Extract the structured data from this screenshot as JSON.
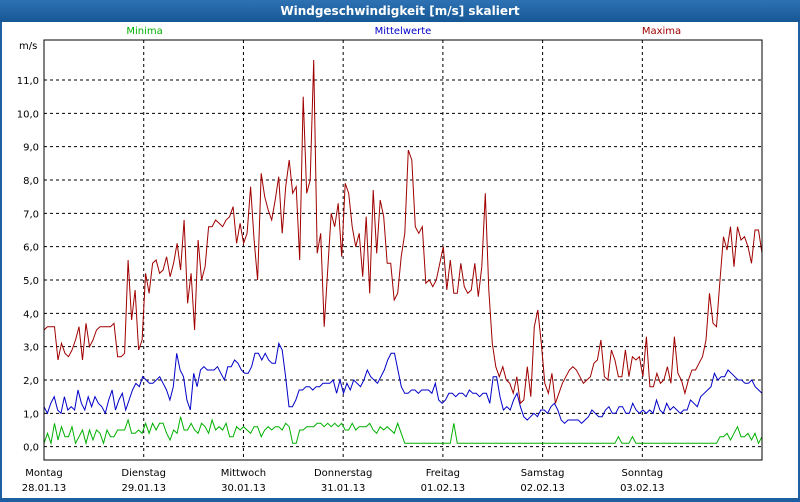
{
  "window": {
    "title": "Windgeschwindigkeit [m/s] skaliert"
  },
  "chart_data": {
    "type": "line",
    "title": "Windgeschwindigkeit [m/s] skaliert",
    "ylabel": "m/s",
    "ylim": [
      -0.4,
      12.2
    ],
    "yticks": [
      0,
      1,
      2,
      3,
      4,
      5,
      6,
      7,
      8,
      9,
      10,
      11
    ],
    "ytick_labels": [
      "0,0",
      "1,0",
      "2,0",
      "3,0",
      "4,0",
      "5,0",
      "6,0",
      "7,0",
      "8,0",
      "9,0",
      "10,0",
      "11,0"
    ],
    "xlim": [
      0,
      7.2
    ],
    "xticks": [
      0,
      1,
      2,
      3,
      4,
      5,
      6
    ],
    "day_labels": [
      "Montag",
      "Dienstag",
      "Mittwoch",
      "Donnerstag",
      "Freitag",
      "Samstag",
      "Sonntag"
    ],
    "date_labels": [
      "28.01.13",
      "29.01.13",
      "30.01.13",
      "31.01.13",
      "01.02.13",
      "02.02.13",
      "03.02.13"
    ],
    "grid": true,
    "legend_placement": "top",
    "series": [
      {
        "name": "Minima",
        "color": "#00b000",
        "values": [
          0.1,
          0.4,
          0.1,
          0.7,
          0.2,
          0.6,
          0.3,
          0.3,
          0.6,
          0.1,
          0.3,
          0.5,
          0.1,
          0.5,
          0.2,
          0.5,
          0.4,
          0.1,
          0.5,
          0.3,
          0.3,
          0.5,
          0.5,
          0.5,
          0.8,
          0.4,
          0.4,
          0.5,
          0.4,
          0.7,
          0.4,
          0.7,
          0.5,
          0.7,
          0.7,
          0.4,
          0.2,
          0.5,
          0.4,
          0.9,
          0.5,
          0.5,
          0.7,
          0.5,
          0.4,
          0.7,
          0.6,
          0.4,
          0.8,
          0.5,
          0.6,
          0.5,
          0.7,
          0.3,
          0.3,
          0.6,
          0.5,
          0.6,
          0.5,
          0.4,
          0.6,
          0.6,
          0.3,
          0.5,
          0.6,
          0.5,
          0.6,
          0.6,
          0.5,
          0.7,
          0.6,
          0.1,
          0.1,
          0.5,
          0.5,
          0.6,
          0.6,
          0.6,
          0.7,
          0.7,
          0.6,
          0.7,
          0.6,
          0.7,
          0.6,
          0.7,
          0.5,
          0.5,
          0.7,
          0.5,
          0.6,
          0.6,
          0.6,
          0.7,
          0.5,
          0.4,
          0.6,
          0.5,
          0.6,
          0.5,
          0.4,
          0.7,
          0.4,
          0.1,
          0.1,
          0.1,
          0.1,
          0.1,
          0.1,
          0.1,
          0.1,
          0.1,
          0.1,
          0.1,
          0.1,
          0.1,
          0.1,
          0.7,
          0.1,
          0.1,
          0.1,
          0.1,
          0.1,
          0.1,
          0.1,
          0.1,
          0.1,
          0.1,
          0.1,
          0.1,
          0.1,
          0.1,
          0.1,
          0.1,
          0.1,
          0.1,
          0.1,
          0.1,
          0.1,
          0.1,
          0.1,
          0.1,
          0.1,
          0.1,
          0.1,
          0.1,
          0.1,
          0.1,
          0.1,
          0.1,
          0.1,
          0.1,
          0.1,
          0.1,
          0.1,
          0.1,
          0.1,
          0.1,
          0.1,
          0.1,
          0.1,
          0.1,
          0.1,
          0.1,
          0.3,
          0.1,
          0.1,
          0.1,
          0.3,
          0.1,
          0.1,
          0.1,
          0.1,
          0.1,
          0.1,
          0.1,
          0.1,
          0.1,
          0.1,
          0.1,
          0.1,
          0.1,
          0.1,
          0.1,
          0.1,
          0.1,
          0.1,
          0.1,
          0.1,
          0.1,
          0.1,
          0.1,
          0.1,
          0.3,
          0.3,
          0.4,
          0.2,
          0.4,
          0.6,
          0.3,
          0.3,
          0.4,
          0.2,
          0.4,
          0.1,
          0.3
        ]
      },
      {
        "name": "Mittelwerte",
        "color": "#0000c8",
        "values": [
          1.2,
          1.0,
          1.3,
          1.5,
          1.1,
          1.0,
          1.5,
          1.1,
          1.2,
          1.1,
          1.7,
          1.3,
          1.1,
          1.5,
          1.2,
          1.5,
          1.3,
          1.2,
          1.0,
          1.4,
          1.7,
          1.1,
          1.4,
          1.6,
          1.1,
          1.4,
          1.7,
          1.9,
          1.8,
          2.1,
          2.0,
          1.9,
          1.9,
          2.0,
          2.1,
          1.9,
          1.7,
          1.4,
          1.8,
          2.8,
          2.3,
          2.1,
          1.4,
          1.1,
          2.2,
          1.8,
          2.3,
          2.4,
          2.3,
          2.3,
          2.3,
          2.4,
          2.2,
          2.0,
          2.4,
          2.4,
          2.6,
          2.5,
          2.3,
          2.2,
          2.2,
          2.4,
          2.8,
          2.8,
          2.6,
          2.8,
          2.6,
          2.5,
          2.5,
          3.1,
          2.9,
          2.1,
          1.2,
          1.2,
          1.4,
          1.7,
          1.7,
          1.8,
          1.8,
          1.7,
          1.8,
          1.8,
          1.9,
          1.9,
          1.9,
          2.0,
          1.6,
          2.0,
          1.6,
          1.9,
          1.7,
          2.0,
          1.9,
          1.8,
          2.0,
          2.3,
          2.1,
          2.0,
          1.9,
          2.1,
          2.3,
          2.6,
          2.8,
          2.8,
          2.3,
          1.8,
          1.6,
          1.6,
          1.7,
          1.7,
          1.6,
          1.7,
          1.7,
          1.7,
          1.6,
          1.9,
          1.4,
          1.3,
          1.4,
          1.6,
          1.6,
          1.5,
          1.6,
          1.6,
          1.5,
          1.7,
          1.6,
          1.6,
          1.5,
          1.6,
          1.6,
          1.3,
          2.1,
          2.1,
          1.5,
          1.1,
          1.2,
          1.1,
          1.4,
          1.6,
          1.2,
          0.9,
          0.8,
          0.9,
          1.0,
          0.9,
          1.1,
          1.1,
          1.0,
          1.2,
          1.3,
          1.1,
          0.8,
          0.7,
          0.8,
          0.8,
          0.8,
          0.8,
          0.7,
          0.8,
          0.9,
          1.1,
          1.0,
          0.9,
          0.9,
          1.1,
          1.2,
          1.0,
          1.0,
          1.2,
          1.2,
          1.0,
          1.0,
          1.3,
          1.1,
          1.0,
          1.1,
          1.0,
          1.1,
          1.0,
          1.4,
          1.1,
          1.0,
          1.3,
          1.1,
          1.2,
          1.1,
          1.0,
          1.1,
          1.1,
          1.4,
          1.3,
          1.2,
          1.5,
          1.6,
          1.7,
          1.8,
          2.2,
          2.0,
          2.1,
          2.1,
          2.3,
          2.2,
          2.1,
          2.0,
          2.0,
          1.9,
          1.9,
          2.0,
          1.8,
          1.7,
          1.6
        ]
      },
      {
        "name": "Maxima",
        "color": "#a00000",
        "values": [
          3.5,
          3.6,
          3.6,
          3.6,
          2.6,
          3.1,
          2.8,
          2.7,
          2.9,
          3.2,
          3.6,
          2.6,
          3.7,
          3.0,
          3.2,
          3.5,
          3.6,
          3.6,
          3.6,
          3.6,
          3.7,
          2.7,
          2.7,
          2.8,
          5.6,
          3.8,
          4.7,
          2.9,
          3.2,
          5.2,
          4.6,
          5.5,
          5.6,
          5.2,
          5.3,
          5.7,
          5.1,
          5.5,
          6.1,
          5.3,
          6.8,
          4.3,
          5.2,
          3.5,
          6.2,
          5.0,
          5.4,
          6.6,
          6.6,
          6.8,
          6.7,
          6.6,
          6.8,
          6.9,
          7.2,
          6.1,
          6.7,
          6.1,
          6.4,
          7.8,
          6.2,
          5.0,
          8.2,
          7.5,
          7.1,
          6.8,
          7.4,
          8.1,
          6.4,
          7.8,
          8.6,
          7.6,
          7.8,
          5.6,
          10.5,
          7.6,
          8.0,
          11.6,
          5.8,
          6.4,
          3.6,
          5.3,
          7.0,
          6.6,
          7.3,
          5.7,
          7.9,
          7.6,
          6.6,
          6.0,
          6.4,
          5.1,
          6.9,
          4.6,
          7.7,
          5.8,
          7.4,
          6.9,
          5.5,
          5.5,
          4.4,
          4.6,
          5.7,
          6.4,
          8.9,
          8.6,
          6.6,
          6.4,
          6.6,
          4.9,
          5.0,
          4.8,
          5.0,
          5.5,
          6.0,
          4.7,
          5.6,
          4.6,
          4.6,
          5.5,
          4.8,
          4.6,
          4.7,
          5.5,
          4.5,
          5.4,
          7.6,
          4.7,
          3.1,
          2.4,
          2.1,
          2.4,
          2.0,
          1.9,
          1.6,
          2.1,
          1.3,
          1.4,
          2.4,
          1.5,
          3.6,
          4.1,
          3.1,
          1.9,
          1.6,
          2.2,
          1.3,
          1.6,
          1.9,
          2.1,
          2.3,
          2.4,
          2.3,
          2.1,
          1.9,
          2.0,
          2.1,
          2.5,
          2.6,
          3.2,
          2.1,
          2.0,
          2.9,
          2.6,
          2.1,
          2.1,
          2.9,
          2.1,
          2.7,
          2.6,
          2.7,
          2.1,
          3.3,
          1.8,
          1.8,
          2.2,
          1.9,
          2.0,
          2.4,
          1.9,
          3.3,
          2.2,
          2.0,
          1.6,
          2.0,
          2.3,
          2.3,
          2.5,
          2.7,
          3.2,
          4.6,
          3.7,
          3.6,
          5.0,
          6.3,
          5.9,
          6.6,
          5.4,
          6.6,
          6.2,
          6.3,
          6.0,
          5.5,
          6.5,
          6.5,
          5.8
        ]
      }
    ]
  }
}
